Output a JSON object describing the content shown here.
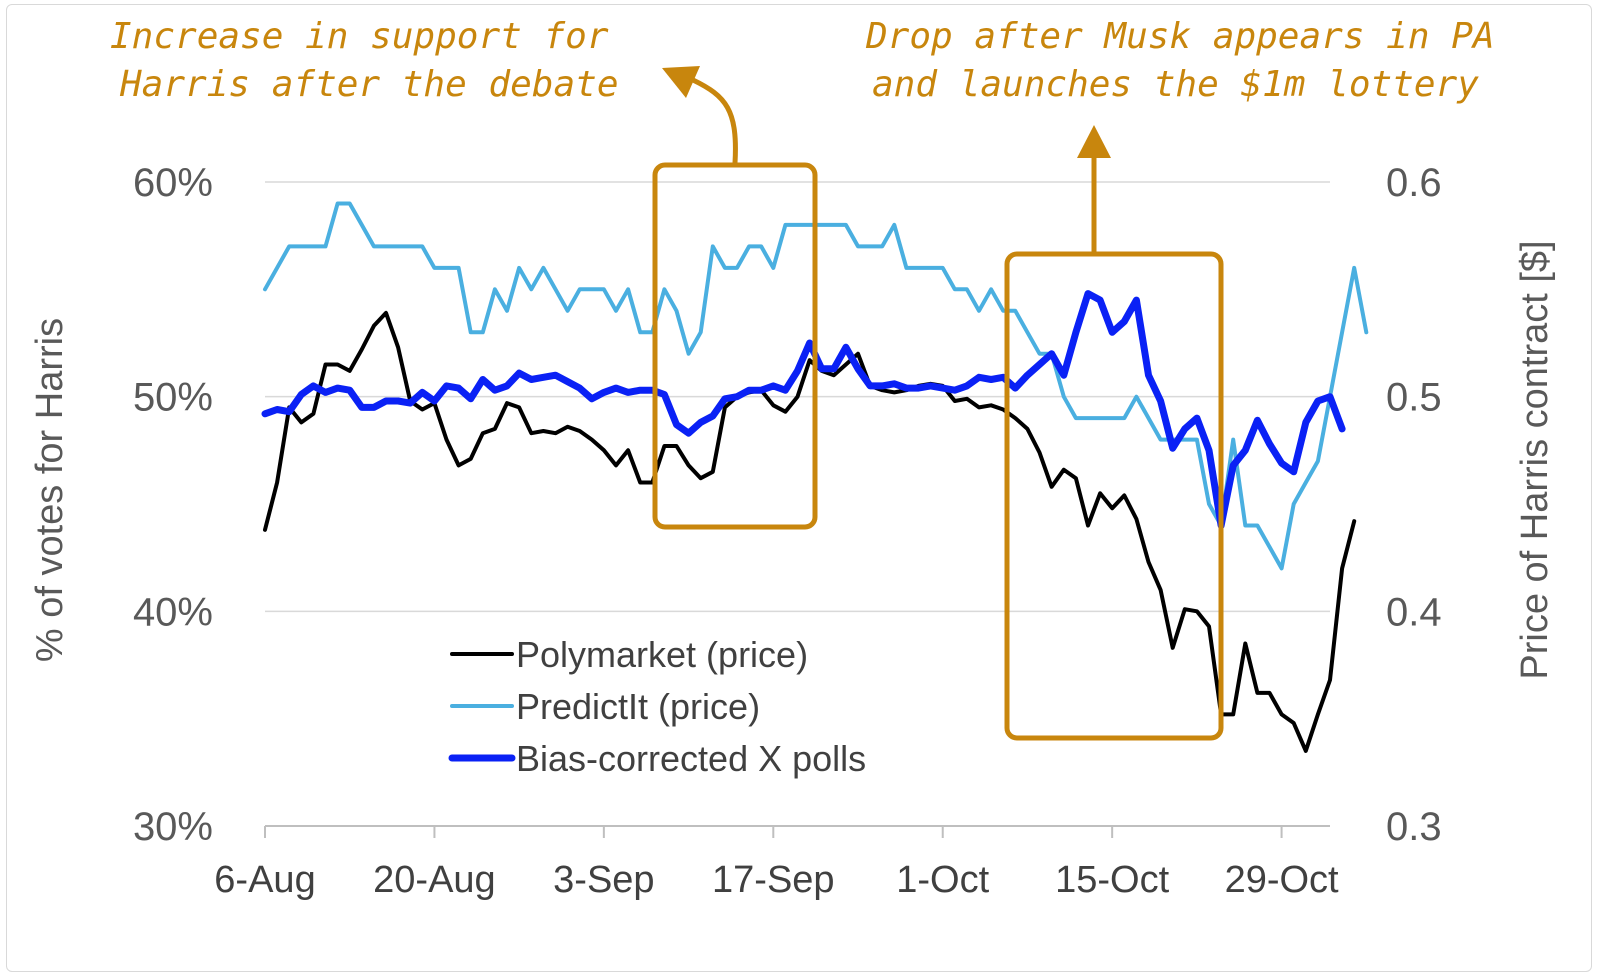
{
  "chart_data": {
    "type": "line",
    "xlabel": "",
    "ylabel": "% of votes for Harris",
    "y2label": "Price of Harris contract [$]",
    "x_tick_labels": [
      "6-Aug",
      "20-Aug",
      "3-Sep",
      "17-Sep",
      "1-Oct",
      "15-Oct",
      "29-Oct"
    ],
    "y_tick_labels": [
      "30%",
      "40%",
      "50%",
      "60%"
    ],
    "y2_tick_labels": [
      "0.3",
      "0.4",
      "0.5",
      "0.6"
    ],
    "ylim": [
      30,
      60
    ],
    "y2lim": [
      0.3,
      0.6
    ],
    "grid": "horizontal",
    "legend_position": "lower-center",
    "x_start": "2024-08-06",
    "x_end": "2024-11-02",
    "series": [
      {
        "name": "Polymarket (price)",
        "color": "#000000",
        "axis": "right",
        "points": [
          [
            "2024-08-06",
            0.438
          ],
          [
            "2024-08-07",
            0.46
          ],
          [
            "2024-08-08",
            0.495
          ],
          [
            "2024-08-09",
            0.488
          ],
          [
            "2024-08-10",
            0.492
          ],
          [
            "2024-08-11",
            0.515
          ],
          [
            "2024-08-12",
            0.515
          ],
          [
            "2024-08-13",
            0.512
          ],
          [
            "2024-08-14",
            0.522
          ],
          [
            "2024-08-15",
            0.533
          ],
          [
            "2024-08-16",
            0.539
          ],
          [
            "2024-08-17",
            0.523
          ],
          [
            "2024-08-18",
            0.498
          ],
          [
            "2024-08-19",
            0.494
          ],
          [
            "2024-08-20",
            0.497
          ],
          [
            "2024-08-21",
            0.48
          ],
          [
            "2024-08-22",
            0.468
          ],
          [
            "2024-08-23",
            0.471
          ],
          [
            "2024-08-24",
            0.483
          ],
          [
            "2024-08-25",
            0.485
          ],
          [
            "2024-08-26",
            0.497
          ],
          [
            "2024-08-27",
            0.495
          ],
          [
            "2024-08-28",
            0.483
          ],
          [
            "2024-08-29",
            0.484
          ],
          [
            "2024-08-30",
            0.483
          ],
          [
            "2024-08-31",
            0.486
          ],
          [
            "2024-09-01",
            0.484
          ],
          [
            "2024-09-02",
            0.48
          ],
          [
            "2024-09-03",
            0.475
          ],
          [
            "2024-09-04",
            0.468
          ],
          [
            "2024-09-05",
            0.475
          ],
          [
            "2024-09-06",
            0.46
          ],
          [
            "2024-09-07",
            0.46
          ],
          [
            "2024-09-08",
            0.477
          ],
          [
            "2024-09-09",
            0.477
          ],
          [
            "2024-09-10",
            0.468
          ],
          [
            "2024-09-11",
            0.462
          ],
          [
            "2024-09-12",
            0.465
          ],
          [
            "2024-09-13",
            0.495
          ],
          [
            "2024-09-14",
            0.5
          ],
          [
            "2024-09-15",
            0.502
          ],
          [
            "2024-09-16",
            0.503
          ],
          [
            "2024-09-17",
            0.496
          ],
          [
            "2024-09-18",
            0.493
          ],
          [
            "2024-09-19",
            0.5
          ],
          [
            "2024-09-20",
            0.517
          ],
          [
            "2024-09-21",
            0.512
          ],
          [
            "2024-09-22",
            0.51
          ],
          [
            "2024-09-23",
            0.515
          ],
          [
            "2024-09-24",
            0.52
          ],
          [
            "2024-09-25",
            0.505
          ],
          [
            "2024-09-26",
            0.503
          ],
          [
            "2024-09-27",
            0.502
          ],
          [
            "2024-09-28",
            0.503
          ],
          [
            "2024-09-29",
            0.505
          ],
          [
            "2024-09-30",
            0.506
          ],
          [
            "2024-10-01",
            0.505
          ],
          [
            "2024-10-02",
            0.498
          ],
          [
            "2024-10-03",
            0.499
          ],
          [
            "2024-10-04",
            0.495
          ],
          [
            "2024-10-05",
            0.496
          ],
          [
            "2024-10-06",
            0.494
          ],
          [
            "2024-10-07",
            0.49
          ],
          [
            "2024-10-08",
            0.485
          ],
          [
            "2024-10-09",
            0.474
          ],
          [
            "2024-10-10",
            0.458
          ],
          [
            "2024-10-11",
            0.466
          ],
          [
            "2024-10-12",
            0.462
          ],
          [
            "2024-10-13",
            0.44
          ],
          [
            "2024-10-14",
            0.455
          ],
          [
            "2024-10-15",
            0.448
          ],
          [
            "2024-10-16",
            0.454
          ],
          [
            "2024-10-17",
            0.443
          ],
          [
            "2024-10-18",
            0.423
          ],
          [
            "2024-10-19",
            0.41
          ],
          [
            "2024-10-20",
            0.383
          ],
          [
            "2024-10-21",
            0.401
          ],
          [
            "2024-10-22",
            0.4
          ],
          [
            "2024-10-23",
            0.393
          ],
          [
            "2024-10-24",
            0.352
          ],
          [
            "2024-10-25",
            0.352
          ],
          [
            "2024-10-26",
            0.385
          ],
          [
            "2024-10-27",
            0.362
          ],
          [
            "2024-10-28",
            0.362
          ],
          [
            "2024-10-29",
            0.352
          ],
          [
            "2024-10-30",
            0.348
          ],
          [
            "2024-10-31",
            0.335
          ],
          [
            "2024-11-01",
            0.352
          ],
          [
            "2024-11-02",
            0.368
          ],
          [
            "2024-11-03",
            0.42
          ],
          [
            "2024-11-04",
            0.442
          ]
        ]
      },
      {
        "name": "PredictIt (price)",
        "color": "#4aafe0",
        "axis": "right",
        "points": [
          [
            "2024-08-06",
            0.55
          ],
          [
            "2024-08-08",
            0.57
          ],
          [
            "2024-08-11",
            0.57
          ],
          [
            "2024-08-12",
            0.59
          ],
          [
            "2024-08-13",
            0.59
          ],
          [
            "2024-08-14",
            0.58
          ],
          [
            "2024-08-15",
            0.57
          ],
          [
            "2024-08-19",
            0.57
          ],
          [
            "2024-08-20",
            0.56
          ],
          [
            "2024-08-22",
            0.56
          ],
          [
            "2024-08-23",
            0.53
          ],
          [
            "2024-08-24",
            0.53
          ],
          [
            "2024-08-25",
            0.55
          ],
          [
            "2024-08-26",
            0.54
          ],
          [
            "2024-08-27",
            0.56
          ],
          [
            "2024-08-28",
            0.55
          ],
          [
            "2024-08-29",
            0.56
          ],
          [
            "2024-08-30",
            0.55
          ],
          [
            "2024-08-31",
            0.54
          ],
          [
            "2024-09-01",
            0.55
          ],
          [
            "2024-09-02",
            0.55
          ],
          [
            "2024-09-03",
            0.55
          ],
          [
            "2024-09-04",
            0.54
          ],
          [
            "2024-09-05",
            0.55
          ],
          [
            "2024-09-06",
            0.53
          ],
          [
            "2024-09-07",
            0.53
          ],
          [
            "2024-09-08",
            0.55
          ],
          [
            "2024-09-09",
            0.54
          ],
          [
            "2024-09-10",
            0.52
          ],
          [
            "2024-09-11",
            0.53
          ],
          [
            "2024-09-12",
            0.57
          ],
          [
            "2024-09-13",
            0.56
          ],
          [
            "2024-09-14",
            0.56
          ],
          [
            "2024-09-15",
            0.57
          ],
          [
            "2024-09-16",
            0.57
          ],
          [
            "2024-09-17",
            0.56
          ],
          [
            "2024-09-18",
            0.58
          ],
          [
            "2024-09-23",
            0.58
          ],
          [
            "2024-09-24",
            0.57
          ],
          [
            "2024-09-26",
            0.57
          ],
          [
            "2024-09-27",
            0.58
          ],
          [
            "2024-09-28",
            0.56
          ],
          [
            "2024-09-30",
            0.56
          ],
          [
            "2024-10-01",
            0.56
          ],
          [
            "2024-10-02",
            0.55
          ],
          [
            "2024-10-03",
            0.55
          ],
          [
            "2024-10-04",
            0.54
          ],
          [
            "2024-10-05",
            0.55
          ],
          [
            "2024-10-06",
            0.54
          ],
          [
            "2024-10-07",
            0.54
          ],
          [
            "2024-10-08",
            0.53
          ],
          [
            "2024-10-09",
            0.52
          ],
          [
            "2024-10-10",
            0.52
          ],
          [
            "2024-10-11",
            0.5
          ],
          [
            "2024-10-12",
            0.49
          ],
          [
            "2024-10-16",
            0.49
          ],
          [
            "2024-10-17",
            0.5
          ],
          [
            "2024-10-18",
            0.49
          ],
          [
            "2024-10-19",
            0.48
          ],
          [
            "2024-10-21",
            0.48
          ],
          [
            "2024-10-22",
            0.48
          ],
          [
            "2024-10-23",
            0.45
          ],
          [
            "2024-10-24",
            0.44
          ],
          [
            "2024-10-25",
            0.48
          ],
          [
            "2024-10-26",
            0.44
          ],
          [
            "2024-10-27",
            0.44
          ],
          [
            "2024-10-28",
            0.43
          ],
          [
            "2024-10-29",
            0.42
          ],
          [
            "2024-10-30",
            0.45
          ],
          [
            "2024-10-31",
            0.46
          ],
          [
            "2024-11-01",
            0.47
          ],
          [
            "2024-11-02",
            0.5
          ],
          [
            "2024-11-03",
            0.53
          ],
          [
            "2024-11-04",
            0.56
          ],
          [
            "2024-11-05",
            0.53
          ]
        ]
      },
      {
        "name": "Bias-corrected X polls",
        "color": "#0a21f5",
        "axis": "left",
        "points": [
          [
            "2024-08-06",
            49.2
          ],
          [
            "2024-08-07",
            49.4
          ],
          [
            "2024-08-08",
            49.3
          ],
          [
            "2024-08-09",
            50.1
          ],
          [
            "2024-08-10",
            50.5
          ],
          [
            "2024-08-11",
            50.2
          ],
          [
            "2024-08-12",
            50.4
          ],
          [
            "2024-08-13",
            50.3
          ],
          [
            "2024-08-14",
            49.5
          ],
          [
            "2024-08-15",
            49.5
          ],
          [
            "2024-08-16",
            49.8
          ],
          [
            "2024-08-17",
            49.8
          ],
          [
            "2024-08-18",
            49.7
          ],
          [
            "2024-08-19",
            50.2
          ],
          [
            "2024-08-20",
            49.8
          ],
          [
            "2024-08-21",
            50.5
          ],
          [
            "2024-08-22",
            50.4
          ],
          [
            "2024-08-23",
            49.9
          ],
          [
            "2024-08-24",
            50.8
          ],
          [
            "2024-08-25",
            50.3
          ],
          [
            "2024-08-26",
            50.5
          ],
          [
            "2024-08-27",
            51.1
          ],
          [
            "2024-08-28",
            50.8
          ],
          [
            "2024-08-29",
            50.9
          ],
          [
            "2024-08-30",
            51.0
          ],
          [
            "2024-08-31",
            50.7
          ],
          [
            "2024-09-01",
            50.4
          ],
          [
            "2024-09-02",
            49.9
          ],
          [
            "2024-09-03",
            50.2
          ],
          [
            "2024-09-04",
            50.4
          ],
          [
            "2024-09-05",
            50.2
          ],
          [
            "2024-09-06",
            50.3
          ],
          [
            "2024-09-07",
            50.3
          ],
          [
            "2024-09-08",
            50.1
          ],
          [
            "2024-09-09",
            48.7
          ],
          [
            "2024-09-10",
            48.3
          ],
          [
            "2024-09-11",
            48.8
          ],
          [
            "2024-09-12",
            49.1
          ],
          [
            "2024-09-13",
            49.9
          ],
          [
            "2024-09-14",
            50.0
          ],
          [
            "2024-09-15",
            50.3
          ],
          [
            "2024-09-16",
            50.3
          ],
          [
            "2024-09-17",
            50.5
          ],
          [
            "2024-09-18",
            50.3
          ],
          [
            "2024-09-19",
            51.2
          ],
          [
            "2024-09-20",
            52.5
          ],
          [
            "2024-09-21",
            51.3
          ],
          [
            "2024-09-22",
            51.3
          ],
          [
            "2024-09-23",
            52.3
          ],
          [
            "2024-09-24",
            51.3
          ],
          [
            "2024-09-25",
            50.5
          ],
          [
            "2024-09-26",
            50.5
          ],
          [
            "2024-09-27",
            50.6
          ],
          [
            "2024-09-28",
            50.4
          ],
          [
            "2024-09-29",
            50.4
          ],
          [
            "2024-09-30",
            50.5
          ],
          [
            "2024-10-01",
            50.4
          ],
          [
            "2024-10-02",
            50.3
          ],
          [
            "2024-10-03",
            50.5
          ],
          [
            "2024-10-04",
            50.9
          ],
          [
            "2024-10-05",
            50.8
          ],
          [
            "2024-10-06",
            50.9
          ],
          [
            "2024-10-07",
            50.4
          ],
          [
            "2024-10-08",
            51.0
          ],
          [
            "2024-10-09",
            51.5
          ],
          [
            "2024-10-10",
            52.0
          ],
          [
            "2024-10-11",
            51.0
          ],
          [
            "2024-10-12",
            53.0
          ],
          [
            "2024-10-13",
            54.8
          ],
          [
            "2024-10-14",
            54.5
          ],
          [
            "2024-10-15",
            53.0
          ],
          [
            "2024-10-16",
            53.5
          ],
          [
            "2024-10-17",
            54.5
          ],
          [
            "2024-10-18",
            51.0
          ],
          [
            "2024-10-19",
            49.8
          ],
          [
            "2024-10-20",
            47.6
          ],
          [
            "2024-10-21",
            48.5
          ],
          [
            "2024-10-22",
            49.0
          ],
          [
            "2024-10-23",
            47.5
          ],
          [
            "2024-10-24",
            44.0
          ],
          [
            "2024-10-25",
            46.8
          ],
          [
            "2024-10-26",
            47.5
          ],
          [
            "2024-10-27",
            48.9
          ],
          [
            "2024-10-28",
            47.8
          ],
          [
            "2024-10-29",
            46.9
          ],
          [
            "2024-10-30",
            46.5
          ],
          [
            "2024-10-31",
            48.8
          ],
          [
            "2024-11-01",
            49.8
          ],
          [
            "2024-11-02",
            50.0
          ],
          [
            "2024-11-03",
            48.5
          ]
        ]
      }
    ]
  },
  "annotations": {
    "left": {
      "line1": "Increase in support for",
      "line2": "Harris after the debate"
    },
    "right": {
      "line1": "Drop after Musk appears in PA",
      "line2": "and launches the $1m lottery"
    },
    "color": "#c8860d"
  }
}
